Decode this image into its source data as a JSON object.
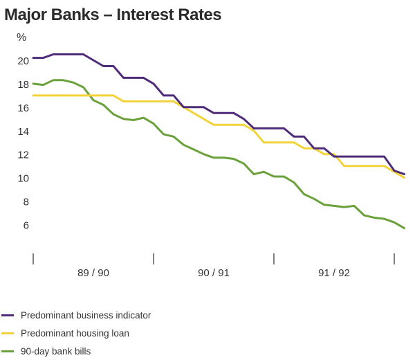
{
  "colors": {
    "business": "#4f2c7a",
    "housing": "#f2d33a",
    "bills": "#6aa13a"
  },
  "chart_data": {
    "type": "line",
    "title": "Major Banks – Interest Rates",
    "ylabel": "%",
    "ylim": [
      4.5,
      21
    ],
    "yticks": [
      6,
      8,
      10,
      12,
      14,
      16,
      18,
      20
    ],
    "xlim": [
      0,
      42
    ],
    "periods": [
      {
        "label": "89 / 90",
        "start": 0,
        "end": 12
      },
      {
        "label": "90 / 91",
        "start": 12,
        "end": 24
      },
      {
        "label": "91 / 92",
        "start": 24,
        "end": 36
      }
    ],
    "legend_position": "bottom-left",
    "series": [
      {
        "name": "Predominant business indicator",
        "color_key": "business",
        "x": [
          0,
          1,
          2,
          3,
          4,
          5,
          6,
          7,
          8,
          9,
          10,
          11,
          12,
          13,
          14,
          15,
          16,
          17,
          18,
          19,
          20,
          21,
          22,
          23,
          24,
          25,
          26,
          27,
          28,
          29,
          30,
          31,
          32,
          33,
          34,
          35,
          36,
          37
        ],
        "values": [
          20.2,
          20.2,
          20.5,
          20.5,
          20.5,
          20.5,
          20.0,
          19.5,
          19.5,
          18.5,
          18.5,
          18.5,
          18.0,
          17.0,
          17.0,
          16.0,
          16.0,
          16.0,
          15.5,
          15.5,
          15.5,
          15.0,
          14.2,
          14.2,
          14.2,
          14.2,
          13.5,
          13.5,
          12.5,
          12.5,
          11.8,
          11.8,
          11.8,
          11.8,
          11.8,
          11.8,
          10.6,
          10.3
        ]
      },
      {
        "name": "Predominant housing loan",
        "color_key": "housing",
        "x": [
          0,
          1,
          2,
          3,
          4,
          5,
          6,
          7,
          8,
          9,
          10,
          11,
          12,
          13,
          14,
          15,
          16,
          17,
          18,
          19,
          20,
          21,
          22,
          23,
          24,
          25,
          26,
          27,
          28,
          29,
          30,
          31,
          32,
          33,
          34,
          35,
          36,
          37
        ],
        "values": [
          17.0,
          17.0,
          17.0,
          17.0,
          17.0,
          17.0,
          17.0,
          17.0,
          17.0,
          16.5,
          16.5,
          16.5,
          16.5,
          16.5,
          16.5,
          16.0,
          15.5,
          15.0,
          14.5,
          14.5,
          14.5,
          14.5,
          14.0,
          13.0,
          13.0,
          13.0,
          13.0,
          12.5,
          12.5,
          12.0,
          12.0,
          11.0,
          11.0,
          11.0,
          11.0,
          11.0,
          10.5,
          10.0
        ]
      },
      {
        "name": "90-day bank bills",
        "color_key": "bills",
        "x": [
          0,
          1,
          2,
          3,
          4,
          5,
          6,
          7,
          8,
          9,
          10,
          11,
          12,
          13,
          14,
          15,
          16,
          17,
          18,
          19,
          20,
          21,
          22,
          23,
          24,
          25,
          26,
          27,
          28,
          29,
          30,
          31,
          32,
          33,
          34,
          35,
          36,
          37
        ],
        "values": [
          18.0,
          17.9,
          18.3,
          18.3,
          18.1,
          17.7,
          16.6,
          16.2,
          15.4,
          15.0,
          14.9,
          15.1,
          14.6,
          13.7,
          13.5,
          12.8,
          12.4,
          12.0,
          11.7,
          11.7,
          11.6,
          11.2,
          10.3,
          10.5,
          10.1,
          10.1,
          9.6,
          8.6,
          8.2,
          7.7,
          7.6,
          7.5,
          7.6,
          6.8,
          6.6,
          6.5,
          6.2,
          5.7
        ]
      }
    ]
  }
}
